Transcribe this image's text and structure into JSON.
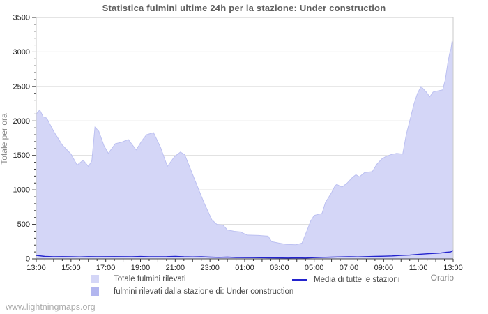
{
  "page": {
    "watermark": "www.lightningmaps.org"
  },
  "chart_data": {
    "type": "area",
    "title": "Statistica fulmini ultime 24h per la stazione: Under construction",
    "xlabel": "Orario",
    "ylabel": "Totale per ora",
    "ylim": [
      0,
      3500
    ],
    "x_range_hours": 24,
    "grid": true,
    "legend_position": "bottom",
    "y_ticks": [
      0,
      500,
      1000,
      1500,
      2000,
      2500,
      3000,
      3500
    ],
    "y_minor_step": 100,
    "x_tick_labels": [
      "13:00",
      "15:00",
      "17:00",
      "19:00",
      "21:00",
      "23:00",
      "01:00",
      "03:00",
      "05:00",
      "07:00",
      "09:00",
      "11:00",
      "13:00"
    ],
    "colors": {
      "total_area": "#d4d6f7",
      "total_area_edge": "#bcc0f1",
      "station_area": "#b2b6ef",
      "media_line": "#2323cd",
      "gridline": "#d9d9d9",
      "plot_border": "#c9c9c9",
      "axis": "#444444",
      "tick": "#333333",
      "tick_label": "#222222"
    },
    "series": [
      {
        "name": "Totale fulmini rilevati",
        "type": "area",
        "color": "#d4d6f7",
        "points": [
          [
            0,
            2100
          ],
          [
            0.2,
            2160
          ],
          [
            0.4,
            2060
          ],
          [
            0.6,
            2040
          ],
          [
            1,
            1850
          ],
          [
            1.5,
            1650
          ],
          [
            2,
            1520
          ],
          [
            2.35,
            1360
          ],
          [
            2.7,
            1430
          ],
          [
            3,
            1340
          ],
          [
            3.2,
            1420
          ],
          [
            3.38,
            1910
          ],
          [
            3.6,
            1850
          ],
          [
            3.9,
            1640
          ],
          [
            4.15,
            1530
          ],
          [
            4.55,
            1670
          ],
          [
            4.9,
            1690
          ],
          [
            5.3,
            1730
          ],
          [
            5.75,
            1580
          ],
          [
            6.1,
            1720
          ],
          [
            6.35,
            1800
          ],
          [
            6.75,
            1830
          ],
          [
            7.15,
            1620
          ],
          [
            7.55,
            1340
          ],
          [
            7.95,
            1480
          ],
          [
            8.3,
            1550
          ],
          [
            8.55,
            1510
          ],
          [
            9.15,
            1130
          ],
          [
            9.65,
            820
          ],
          [
            10.1,
            570
          ],
          [
            10.4,
            500
          ],
          [
            10.75,
            490
          ],
          [
            11,
            420
          ],
          [
            11.4,
            400
          ],
          [
            11.75,
            390
          ],
          [
            12.15,
            345
          ],
          [
            12.8,
            340
          ],
          [
            13.35,
            330
          ],
          [
            13.55,
            250
          ],
          [
            13.95,
            230
          ],
          [
            14.4,
            210
          ],
          [
            14.95,
            205
          ],
          [
            15.3,
            230
          ],
          [
            15.6,
            420
          ],
          [
            15.8,
            550
          ],
          [
            16,
            630
          ],
          [
            16.45,
            660
          ],
          [
            16.65,
            820
          ],
          [
            17,
            960
          ],
          [
            17.2,
            1060
          ],
          [
            17.3,
            1080
          ],
          [
            17.6,
            1040
          ],
          [
            17.9,
            1100
          ],
          [
            18.2,
            1180
          ],
          [
            18.4,
            1220
          ],
          [
            18.6,
            1190
          ],
          [
            18.9,
            1250
          ],
          [
            19.35,
            1265
          ],
          [
            19.6,
            1370
          ],
          [
            19.9,
            1450
          ],
          [
            20.1,
            1480
          ],
          [
            20.4,
            1510
          ],
          [
            20.75,
            1530
          ],
          [
            21.1,
            1520
          ],
          [
            21.3,
            1800
          ],
          [
            21.55,
            2050
          ],
          [
            21.75,
            2250
          ],
          [
            21.95,
            2400
          ],
          [
            22.15,
            2500
          ],
          [
            22.45,
            2420
          ],
          [
            22.65,
            2350
          ],
          [
            22.85,
            2420
          ],
          [
            23,
            2430
          ],
          [
            23.4,
            2450
          ],
          [
            23.55,
            2600
          ],
          [
            23.7,
            2850
          ],
          [
            23.8,
            2980
          ],
          [
            23.88,
            3050
          ],
          [
            23.94,
            3160
          ],
          [
            24,
            3100
          ]
        ]
      },
      {
        "name": "fulmini rilevati dalla stazione di: Under construction",
        "type": "area",
        "color": "#b2b6ef",
        "points": [
          [
            0,
            0
          ],
          [
            24,
            0
          ]
        ]
      },
      {
        "name": "Media di tutte le stazioni",
        "type": "line",
        "color": "#2323cd",
        "points": [
          [
            0,
            50
          ],
          [
            0.5,
            35
          ],
          [
            1,
            30
          ],
          [
            1.5,
            32
          ],
          [
            2,
            30
          ],
          [
            2.5,
            28
          ],
          [
            3,
            32
          ],
          [
            3.5,
            30
          ],
          [
            4.5,
            32
          ],
          [
            5.5,
            30
          ],
          [
            6,
            34
          ],
          [
            6.5,
            30
          ],
          [
            7.5,
            32
          ],
          [
            8,
            36
          ],
          [
            8.5,
            30
          ],
          [
            9,
            28
          ],
          [
            9.5,
            30
          ],
          [
            10,
            25
          ],
          [
            10.5,
            22
          ],
          [
            11,
            25
          ],
          [
            11.5,
            20
          ],
          [
            12.5,
            18
          ],
          [
            13.5,
            15
          ],
          [
            14.5,
            12
          ],
          [
            15,
            15
          ],
          [
            15.5,
            12
          ],
          [
            16,
            18
          ],
          [
            16.5,
            22
          ],
          [
            17,
            25
          ],
          [
            17.5,
            28
          ],
          [
            18,
            30
          ],
          [
            18.5,
            28
          ],
          [
            19,
            32
          ],
          [
            19.5,
            35
          ],
          [
            20,
            38
          ],
          [
            20.5,
            42
          ],
          [
            21,
            50
          ],
          [
            21.5,
            55
          ],
          [
            22,
            65
          ],
          [
            22.3,
            70
          ],
          [
            22.6,
            75
          ],
          [
            23,
            80
          ],
          [
            23.3,
            85
          ],
          [
            23.6,
            95
          ],
          [
            23.85,
            100
          ],
          [
            24,
            120
          ]
        ]
      }
    ]
  }
}
